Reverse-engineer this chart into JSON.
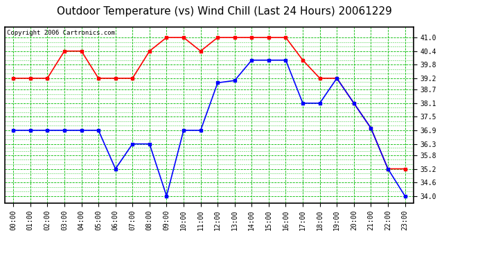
{
  "title": "Outdoor Temperature (vs) Wind Chill (Last 24 Hours) 20061229",
  "copyright": "Copyright 2006 Cartronics.com",
  "hours": [
    "00:00",
    "01:00",
    "02:00",
    "03:00",
    "04:00",
    "05:00",
    "06:00",
    "07:00",
    "08:00",
    "09:00",
    "10:00",
    "11:00",
    "12:00",
    "13:00",
    "14:00",
    "15:00",
    "16:00",
    "17:00",
    "18:00",
    "19:00",
    "20:00",
    "21:00",
    "22:00",
    "23:00"
  ],
  "temp": [
    39.2,
    39.2,
    39.2,
    40.4,
    40.4,
    39.2,
    39.2,
    39.2,
    40.4,
    41.0,
    41.0,
    40.4,
    41.0,
    41.0,
    41.0,
    41.0,
    41.0,
    40.0,
    39.2,
    39.2,
    38.1,
    37.0,
    35.2,
    35.2
  ],
  "windchill": [
    36.9,
    36.9,
    36.9,
    36.9,
    36.9,
    36.9,
    35.2,
    36.3,
    36.3,
    34.0,
    36.9,
    36.9,
    39.0,
    39.1,
    40.0,
    40.0,
    40.0,
    38.1,
    38.1,
    39.2,
    38.1,
    37.0,
    35.2,
    34.0
  ],
  "temp_color": "#ff0000",
  "windchill_color": "#0000ff",
  "bg_color": "#ffffff",
  "plot_bg_color": "#ffffff",
  "grid_color": "#00bb00",
  "ylim": [
    33.7,
    41.45
  ],
  "yticks": [
    34.0,
    34.6,
    35.2,
    35.8,
    36.3,
    36.9,
    37.5,
    38.1,
    38.7,
    39.2,
    39.8,
    40.4,
    41.0
  ],
  "title_fontsize": 11,
  "copyright_fontsize": 6.5,
  "tick_fontsize": 7,
  "marker": "s",
  "markersize": 2.5,
  "linewidth": 1.2
}
